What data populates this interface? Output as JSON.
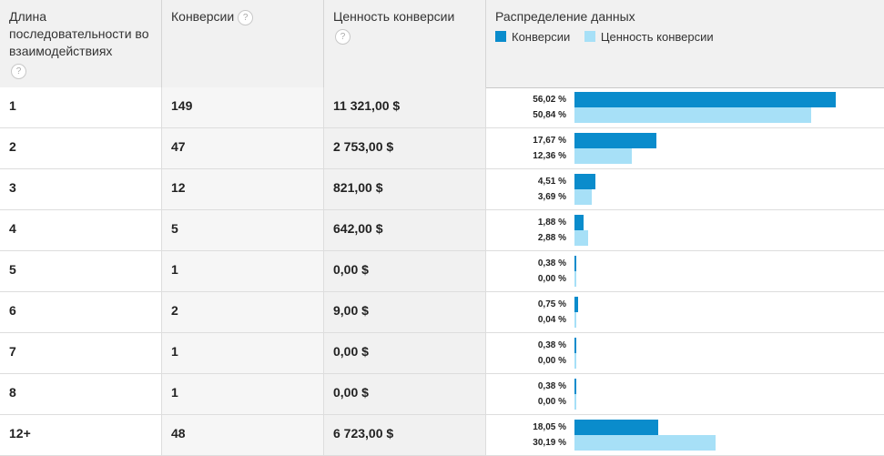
{
  "headers": {
    "length": "Длина последовательности во взаимодействиях",
    "conversions": "Конверсии",
    "value": "Ценность конверсии",
    "distribution": "Распределение данных",
    "help": "?"
  },
  "legend": {
    "conversions": "Конверсии",
    "value": "Ценность конверсии"
  },
  "colors": {
    "conversions": "#0a8ccc",
    "value": "#a7e0f7",
    "header_bg": "#f1f1f1"
  },
  "rows": [
    {
      "length": "1",
      "conversions": "149",
      "value": "11 321,00 $",
      "conv_pct": "56,02 %",
      "val_pct": "50,84 %",
      "conv_share": 56.02,
      "val_share": 50.84
    },
    {
      "length": "2",
      "conversions": "47",
      "value": "2 753,00 $",
      "conv_pct": "17,67 %",
      "val_pct": "12,36 %",
      "conv_share": 17.67,
      "val_share": 12.36
    },
    {
      "length": "3",
      "conversions": "12",
      "value": "821,00 $",
      "conv_pct": "4,51 %",
      "val_pct": "3,69 %",
      "conv_share": 4.51,
      "val_share": 3.69
    },
    {
      "length": "4",
      "conversions": "5",
      "value": "642,00 $",
      "conv_pct": "1,88 %",
      "val_pct": "2,88 %",
      "conv_share": 1.88,
      "val_share": 2.88
    },
    {
      "length": "5",
      "conversions": "1",
      "value": "0,00 $",
      "conv_pct": "0,38 %",
      "val_pct": "0,00 %",
      "conv_share": 0.38,
      "val_share": 0.0
    },
    {
      "length": "6",
      "conversions": "2",
      "value": "9,00 $",
      "conv_pct": "0,75 %",
      "val_pct": "0,04 %",
      "conv_share": 0.75,
      "val_share": 0.04
    },
    {
      "length": "7",
      "conversions": "1",
      "value": "0,00 $",
      "conv_pct": "0,38 %",
      "val_pct": "0,00 %",
      "conv_share": 0.38,
      "val_share": 0.0
    },
    {
      "length": "8",
      "conversions": "1",
      "value": "0,00 $",
      "conv_pct": "0,38 %",
      "val_pct": "0,00 %",
      "conv_share": 0.38,
      "val_share": 0.0
    },
    {
      "length": "12+",
      "conversions": "48",
      "value": "6 723,00 $",
      "conv_pct": "18,05 %",
      "val_pct": "30,19 %",
      "conv_share": 18.05,
      "val_share": 30.19
    }
  ]
}
